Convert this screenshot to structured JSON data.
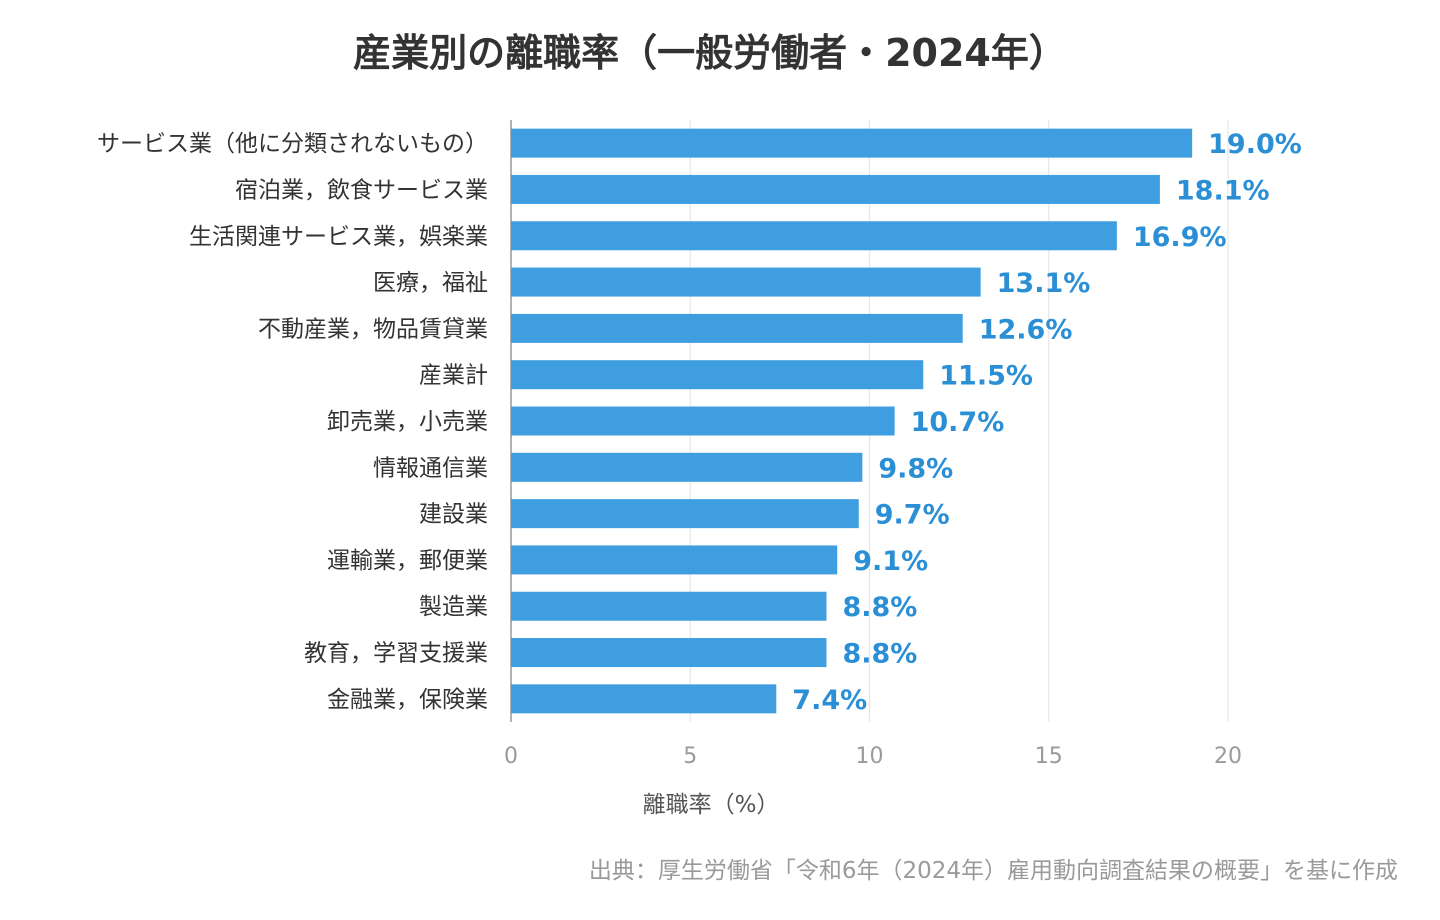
{
  "chart_data": {
    "type": "bar",
    "orientation": "horizontal",
    "title": "産業別の離職率（一般労働者・2024年）",
    "categories": [
      "サービス業（他に分類されないもの）",
      "宿泊業，飲食サービス業",
      "生活関連サービス業，娯楽業",
      "医療，福祉",
      "不動産業，物品賃貸業",
      "産業計",
      "卸売業，小売業",
      "情報通信業",
      "建設業",
      "運輸業，郵便業",
      "製造業",
      "教育，学習支援業",
      "金融業，保険業"
    ],
    "values": [
      19.0,
      18.1,
      16.9,
      13.1,
      12.6,
      11.5,
      10.7,
      9.8,
      9.7,
      9.1,
      8.8,
      8.8,
      7.4
    ],
    "value_labels": [
      "19.0%",
      "18.1%",
      "16.9%",
      "13.1%",
      "12.6%",
      "11.5%",
      "10.7%",
      "9.8%",
      "9.7%",
      "9.1%",
      "8.8%",
      "8.8%",
      "7.4%"
    ],
    "xlabel": "離職率（%）",
    "xlim": [
      0,
      20
    ],
    "xticks": [
      0,
      5,
      10,
      15,
      20
    ],
    "grid": true,
    "legend": "none",
    "bar_color": "#3f9ee0",
    "label_color": "#2b8fd6"
  },
  "source": "出典：厚生労働省「令和6年（2024年）雇用動向調査結果の概要」を基に作成"
}
